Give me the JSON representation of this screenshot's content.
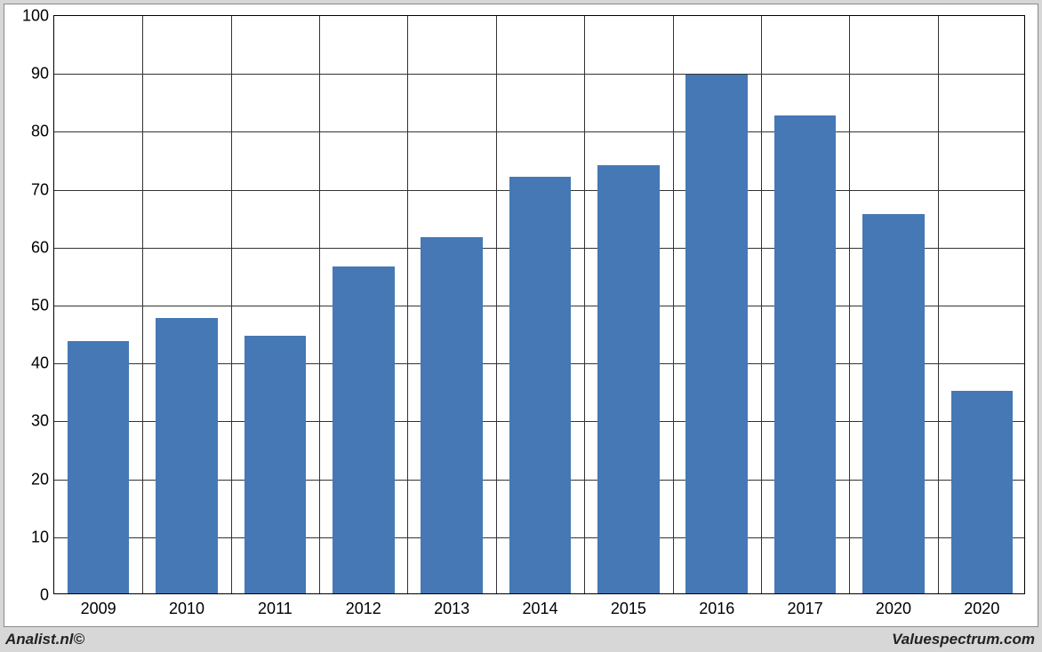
{
  "chart": {
    "type": "bar",
    "categories": [
      "2009",
      "2010",
      "2011",
      "2012",
      "2013",
      "2014",
      "2015",
      "2016",
      "2017",
      "2020",
      "2020"
    ],
    "values": [
      43.5,
      47.5,
      44.5,
      56.5,
      61.5,
      72.0,
      74.0,
      89.5,
      82.5,
      65.5,
      35.0
    ],
    "bar_color": "#4578b4",
    "background_color": "#ffffff",
    "outer_background_color": "#d7d7d7",
    "grid_color": "#333333",
    "border_color": "#000000",
    "frame_border_color": "#8a8a8a",
    "ylim": [
      0,
      100
    ],
    "ytick_step": 10,
    "bar_width_ratio": 0.7,
    "label_fontsize": 18,
    "font_family": "Arial"
  },
  "footer": {
    "left": "Analist.nl©",
    "right": "Valuespectrum.com"
  }
}
